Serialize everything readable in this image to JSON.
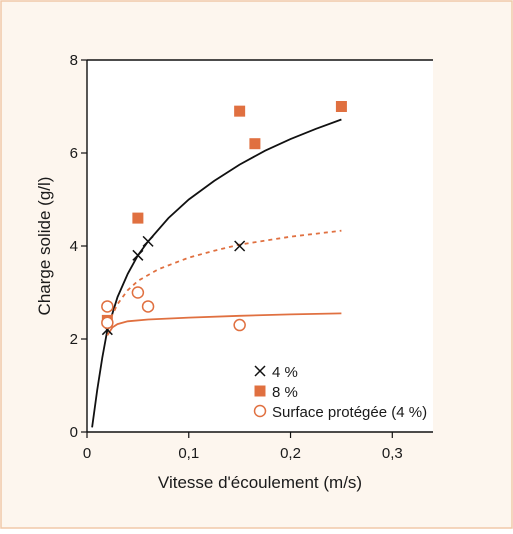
{
  "colors": {
    "frame_bg": "#fdf6ee",
    "frame_border": "#f0c8a8",
    "plot_bg": "#ffffff",
    "accent": "#e07040",
    "black": "#111111"
  },
  "chart_data": {
    "type": "scatter",
    "title": "",
    "xlabel": "Vitesse d'écoulement (m/s)",
    "ylabel": "Charge solide (g/l)",
    "xlim": [
      0,
      0.34
    ],
    "ylim": [
      0,
      8
    ],
    "x_ticks": [
      {
        "value": 0,
        "label": "0"
      },
      {
        "value": 0.1,
        "label": "0,1"
      },
      {
        "value": 0.2,
        "label": "0,2"
      },
      {
        "value": 0.3,
        "label": "0,3"
      }
    ],
    "y_ticks": [
      {
        "value": 0,
        "label": "0"
      },
      {
        "value": 2,
        "label": "2"
      },
      {
        "value": 4,
        "label": "4"
      },
      {
        "value": 6,
        "label": "6"
      },
      {
        "value": 8,
        "label": "8"
      }
    ],
    "grid": false,
    "legend_position": "bottom-center",
    "series": [
      {
        "name": "4 %",
        "marker": "cross",
        "color": "#111111",
        "points": [
          {
            "x": 0.02,
            "y": 2.2
          },
          {
            "x": 0.05,
            "y": 3.8
          },
          {
            "x": 0.06,
            "y": 4.1
          },
          {
            "x": 0.15,
            "y": 4.0
          }
        ]
      },
      {
        "name": "8 %",
        "marker": "square",
        "color": "#e07040",
        "points": [
          {
            "x": 0.02,
            "y": 2.4
          },
          {
            "x": 0.05,
            "y": 4.6
          },
          {
            "x": 0.15,
            "y": 6.9
          },
          {
            "x": 0.165,
            "y": 6.2
          },
          {
            "x": 0.25,
            "y": 7.0
          }
        ]
      },
      {
        "name": "Surface protégée (4 %)",
        "marker": "open-circle",
        "color": "#e07040",
        "points": [
          {
            "x": 0.02,
            "y": 2.7
          },
          {
            "x": 0.02,
            "y": 2.35
          },
          {
            "x": 0.05,
            "y": 3.0
          },
          {
            "x": 0.06,
            "y": 2.7
          },
          {
            "x": 0.15,
            "y": 2.3
          }
        ]
      }
    ],
    "curves": [
      {
        "style": "solid",
        "color": "#111111",
        "points": [
          {
            "x": 0.005,
            "y": 0.1
          },
          {
            "x": 0.01,
            "y": 0.9
          },
          {
            "x": 0.015,
            "y": 1.6
          },
          {
            "x": 0.02,
            "y": 2.2
          },
          {
            "x": 0.03,
            "y": 2.9
          },
          {
            "x": 0.04,
            "y": 3.4
          },
          {
            "x": 0.05,
            "y": 3.8
          },
          {
            "x": 0.06,
            "y": 4.1
          },
          {
            "x": 0.08,
            "y": 4.6
          },
          {
            "x": 0.1,
            "y": 5.0
          },
          {
            "x": 0.125,
            "y": 5.4
          },
          {
            "x": 0.15,
            "y": 5.75
          },
          {
            "x": 0.175,
            "y": 6.05
          },
          {
            "x": 0.2,
            "y": 6.3
          },
          {
            "x": 0.225,
            "y": 6.52
          },
          {
            "x": 0.25,
            "y": 6.72
          }
        ]
      },
      {
        "style": "dashed",
        "color": "#e07040",
        "points": [
          {
            "x": 0.02,
            "y": 2.3
          },
          {
            "x": 0.03,
            "y": 2.75
          },
          {
            "x": 0.04,
            "y": 3.05
          },
          {
            "x": 0.05,
            "y": 3.25
          },
          {
            "x": 0.07,
            "y": 3.5
          },
          {
            "x": 0.1,
            "y": 3.75
          },
          {
            "x": 0.125,
            "y": 3.9
          },
          {
            "x": 0.15,
            "y": 4.03
          },
          {
            "x": 0.2,
            "y": 4.2
          },
          {
            "x": 0.25,
            "y": 4.33
          }
        ]
      },
      {
        "style": "solid",
        "color": "#e07040",
        "points": [
          {
            "x": 0.02,
            "y": 2.08
          },
          {
            "x": 0.025,
            "y": 2.25
          },
          {
            "x": 0.03,
            "y": 2.32
          },
          {
            "x": 0.04,
            "y": 2.38
          },
          {
            "x": 0.06,
            "y": 2.42
          },
          {
            "x": 0.1,
            "y": 2.46
          },
          {
            "x": 0.15,
            "y": 2.5
          },
          {
            "x": 0.2,
            "y": 2.53
          },
          {
            "x": 0.25,
            "y": 2.55
          }
        ]
      }
    ]
  }
}
